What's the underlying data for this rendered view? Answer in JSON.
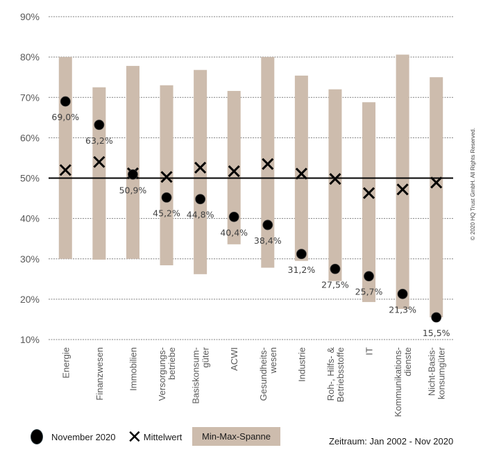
{
  "chart_data": {
    "type": "range-dot",
    "title": "",
    "xlabel": "",
    "ylabel": "",
    "ylim": [
      10,
      90
    ],
    "yticks": [
      90,
      80,
      70,
      60,
      50,
      40,
      30,
      20,
      10
    ],
    "ytick_labels": [
      "90%",
      "80%",
      "70%",
      "60%",
      "50%",
      "40%",
      "30%",
      "20%",
      "10%"
    ],
    "grid": true,
    "reference_line": 50,
    "categories": [
      [
        "Energie"
      ],
      [
        "Finanzwesen"
      ],
      [
        "Immobilien"
      ],
      [
        "Versorgungs-",
        "betriebe"
      ],
      [
        "Basiskonsum-",
        "güter"
      ],
      [
        "ACWI"
      ],
      [
        "Gesundheits-",
        "wesen"
      ],
      [
        "Industrie"
      ],
      [
        "Roh-, Hilfs- &",
        "Betriebsstoffe"
      ],
      [
        "IT"
      ],
      [
        "Kommunikations-",
        "dienste"
      ],
      [
        "Nicht-Basis-",
        "konsumgüter"
      ]
    ],
    "series": [
      {
        "name": "Min-Max-Spanne",
        "type": "range",
        "color": "#cdbcad",
        "min": [
          30.0,
          29.8,
          30.0,
          28.4,
          26.2,
          33.6,
          27.8,
          29.5,
          24.5,
          19.3,
          17.6,
          15.5
        ],
        "max": [
          80.0,
          72.5,
          77.8,
          73.0,
          76.8,
          71.6,
          80.0,
          75.4,
          72.0,
          68.8,
          80.6,
          75.0
        ]
      },
      {
        "name": "Mittelwert",
        "type": "x-marker",
        "color": "#000000",
        "values": [
          52.0,
          54.0,
          51.2,
          50.3,
          52.6,
          51.7,
          53.5,
          51.1,
          49.8,
          46.3,
          47.2,
          48.9
        ]
      },
      {
        "name": "November 2020",
        "type": "dot",
        "color": "#000000",
        "values": [
          69.0,
          63.2,
          50.9,
          45.2,
          44.8,
          40.4,
          38.4,
          31.2,
          27.5,
          25.7,
          21.3,
          15.5
        ],
        "labels": [
          "69,0%",
          "63,2%",
          "50,9%",
          "45,2%",
          "44,8%",
          "40,4%",
          "38,4%",
          "31,2%",
          "27,5%",
          "25,7%",
          "21,3%",
          "15,5%"
        ]
      }
    ],
    "legend": [
      "November 2020",
      "Mittelwert",
      "Min-Max-Spanne"
    ],
    "legend_position": "bottom-left"
  },
  "footer": {
    "period": "Zeitraum: Jan 2002 - Nov 2020",
    "copyright": "© 2020 HQ Trust GmbH. All Rights Reserved."
  }
}
